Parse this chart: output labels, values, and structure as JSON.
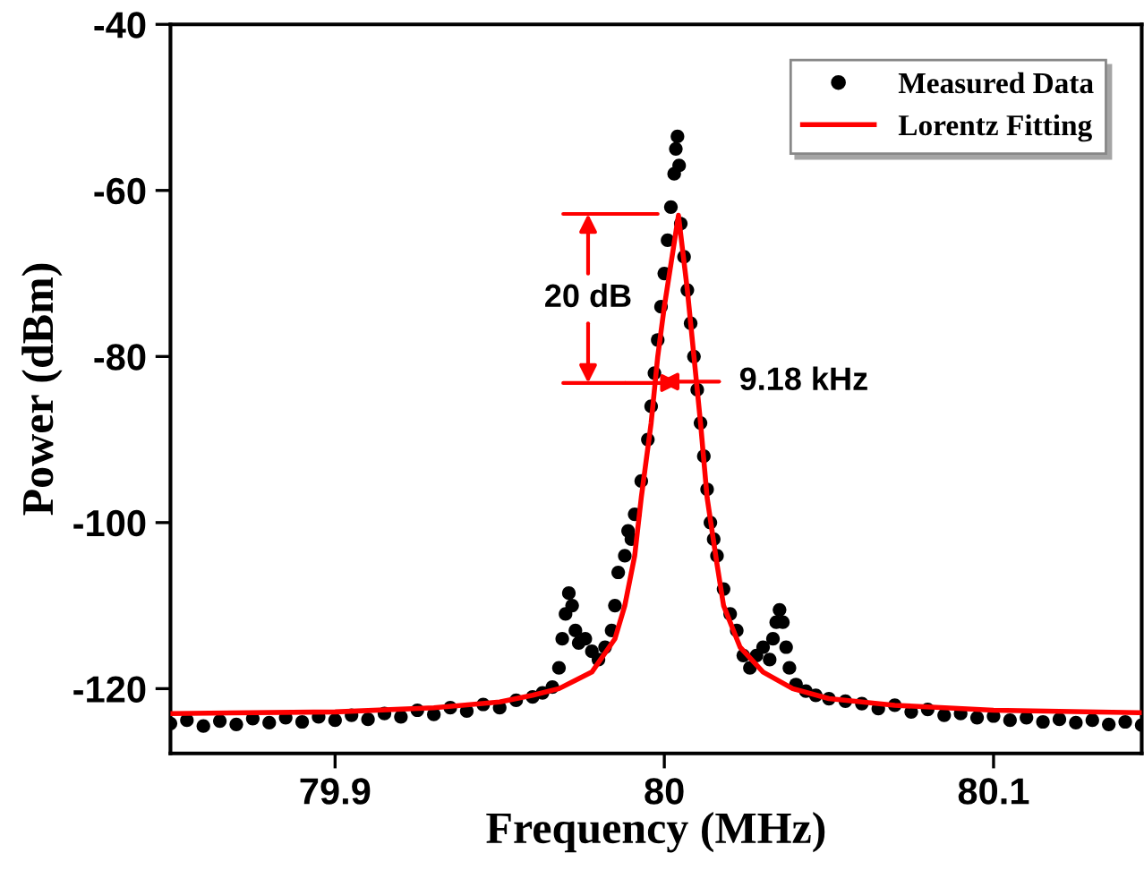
{
  "chart_data": {
    "type": "scatter",
    "xlabel": "Frequency (MHz)",
    "ylabel": "Power (dBm)",
    "xlim": [
      79.85,
      80.145
    ],
    "ylim": [
      -127.8,
      -40
    ],
    "xticks": [
      79.9,
      {
        "value": 80,
        "label": "80"
      },
      80.1
    ],
    "yticks": [
      -40,
      -60,
      -80,
      -100,
      -120
    ],
    "grid": false,
    "legend": "top right",
    "series": [
      {
        "name": "Measured Data",
        "marker": "circle",
        "color": "#000000",
        "x": [
          79.85,
          79.855,
          79.86,
          79.865,
          79.87,
          79.875,
          79.88,
          79.885,
          79.89,
          79.895,
          79.9,
          79.905,
          79.91,
          79.915,
          79.92,
          79.925,
          79.93,
          79.935,
          79.94,
          79.945,
          79.95,
          79.955,
          79.96,
          79.963,
          79.966,
          79.968,
          79.969,
          79.97,
          79.971,
          79.972,
          79.973,
          79.974,
          79.976,
          79.978,
          79.98,
          79.982,
          79.984,
          79.985,
          79.986,
          79.988,
          79.989,
          79.99,
          79.991,
          79.993,
          79.995,
          79.996,
          79.997,
          79.998,
          79.999,
          80.0,
          80.001,
          80.002,
          80.003,
          80.0035,
          80.004,
          80.0045,
          80.005,
          80.006,
          80.007,
          80.008,
          80.009,
          80.01,
          80.011,
          80.012,
          80.013,
          80.014,
          80.015,
          80.016,
          80.018,
          80.02,
          80.022,
          80.024,
          80.026,
          80.028,
          80.03,
          80.032,
          80.033,
          80.034,
          80.035,
          80.036,
          80.037,
          80.038,
          80.04,
          80.043,
          80.046,
          80.05,
          80.055,
          80.06,
          80.065,
          80.07,
          80.075,
          80.08,
          80.085,
          80.09,
          80.095,
          80.1,
          80.105,
          80.11,
          80.115,
          80.12,
          80.125,
          80.13,
          80.135,
          80.14,
          80.145
        ],
        "values": [
          -124.2,
          -123.8,
          -124.5,
          -123.9,
          -124.3,
          -123.6,
          -124.1,
          -123.5,
          -124.0,
          -123.4,
          -123.8,
          -123.2,
          -123.7,
          -123.0,
          -123.4,
          -122.6,
          -123.1,
          -122.3,
          -122.7,
          -121.9,
          -122.3,
          -121.4,
          -121.0,
          -120.5,
          -119.8,
          -117.5,
          -114,
          -111,
          -108.5,
          -110,
          -113,
          -114.5,
          -114,
          -115.5,
          -116.5,
          -115,
          -113,
          -110,
          -106,
          -104,
          -101,
          -102,
          -99,
          -95,
          -90,
          -86,
          -82,
          -78,
          -74,
          -70,
          -66,
          -62,
          -58,
          -55,
          -53.5,
          -57,
          -64,
          -68,
          -72,
          -76,
          -80,
          -84,
          -88,
          -92,
          -96,
          -100,
          -102,
          -104,
          -108,
          -111,
          -113,
          -116,
          -117.5,
          -116,
          -115,
          -116.5,
          -114,
          -112,
          -110.5,
          -112,
          -115,
          -117.5,
          -119.5,
          -120.3,
          -120.8,
          -121.2,
          -121.5,
          -121.8,
          -122.4,
          -122.0,
          -122.8,
          -122.5,
          -123.2,
          -123.0,
          -123.5,
          -123.3,
          -123.8,
          -123.5,
          -124.0,
          -123.7,
          -124.1,
          -123.8,
          -124.3,
          -124.0,
          -124.4
        ]
      },
      {
        "name": "Lorentz Fitting",
        "type": "line",
        "color": "#ff0000",
        "x": [
          79.85,
          79.9,
          79.93,
          79.95,
          79.96,
          79.968,
          79.978,
          79.985,
          79.988,
          79.991,
          79.993,
          79.996,
          79.998,
          80.0,
          80.0043,
          80.007,
          80.009,
          80.011,
          80.013,
          80.016,
          80.018,
          80.023,
          80.03,
          80.039,
          80.05,
          80.07,
          80.1,
          80.145
        ],
        "values": [
          -123,
          -122.8,
          -122.3,
          -121.6,
          -120.8,
          -120,
          -118,
          -114,
          -110,
          -104,
          -97,
          -88,
          -80,
          -74,
          -63,
          -72,
          -80,
          -88,
          -97,
          -105,
          -110,
          -115,
          -118,
          -120,
          -121.2,
          -122,
          -122.6,
          -122.9
        ]
      }
    ],
    "annotations": [
      "20 dB",
      "9.18 kHz"
    ]
  }
}
